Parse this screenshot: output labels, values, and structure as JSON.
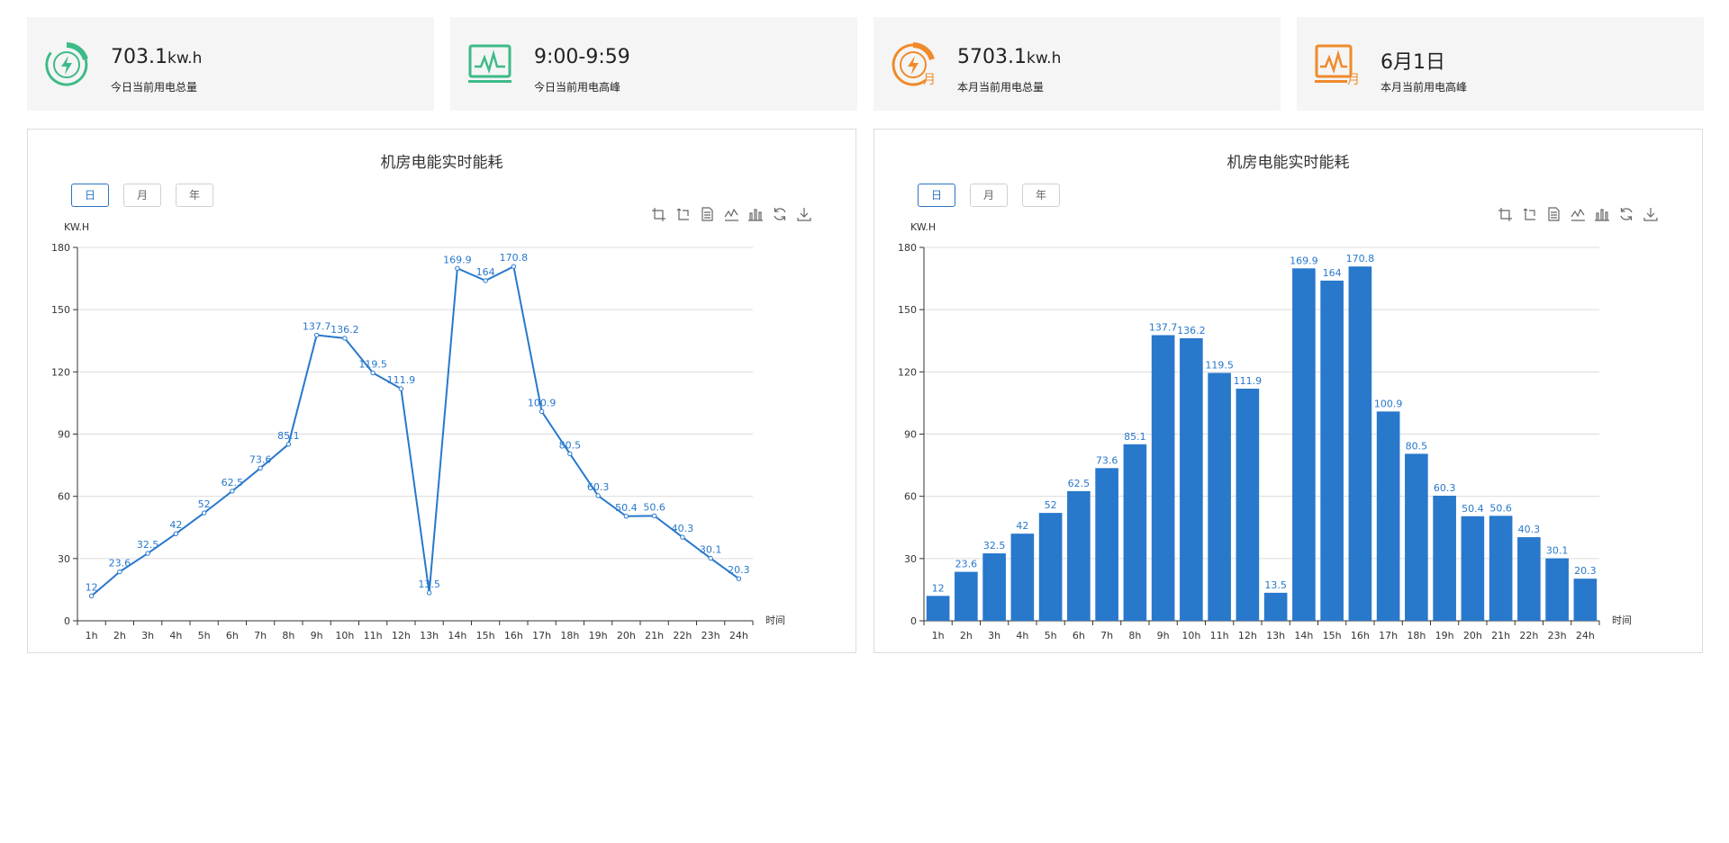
{
  "stats": [
    {
      "value": "703.1",
      "unit": "kw.h",
      "label": "今日当前用电总量",
      "icon": "today-energy-icon",
      "color": "#3dbb86"
    },
    {
      "value": "9:00-9:59",
      "unit": "",
      "label": "今日当前用电高峰",
      "icon": "today-peak-monitor-icon",
      "color": "#3dbb86"
    },
    {
      "value": "5703.1",
      "unit": "kw.h",
      "label": "本月当前用电总量",
      "icon": "month-energy-icon",
      "color": "#f08a2b"
    },
    {
      "value": "6月1日",
      "unit": "",
      "label": "本月当前用电高峰",
      "icon": "month-peak-monitor-icon",
      "color": "#f08a2b"
    }
  ],
  "icon_badge_text": "月",
  "tabs": [
    "日",
    "月",
    "年"
  ],
  "toolbox_icons": [
    "zoom-icon",
    "zoom-reset-icon",
    "data-view-icon",
    "line-switch-icon",
    "bar-switch-icon",
    "restore-icon",
    "download-icon"
  ],
  "accent_color": "#2878cc",
  "chart_data": [
    {
      "type": "line",
      "title": "机房电能实时能耗",
      "xlabel": "时间",
      "ylabel": "KW.H",
      "categories": [
        "1h",
        "2h",
        "3h",
        "4h",
        "5h",
        "6h",
        "7h",
        "8h",
        "9h",
        "10h",
        "11h",
        "12h",
        "13h",
        "14h",
        "15h",
        "16h",
        "17h",
        "18h",
        "19h",
        "20h",
        "21h",
        "22h",
        "23h",
        "24h"
      ],
      "values": [
        12,
        23.6,
        32.5,
        42,
        52,
        62.5,
        73.6,
        85.1,
        137.7,
        136.2,
        119.5,
        111.9,
        13.5,
        169.9,
        164,
        170.8,
        100.9,
        80.5,
        60.3,
        50.4,
        50.6,
        40.3,
        30.1,
        20.3
      ],
      "ylim": [
        0,
        180
      ],
      "yticks": [
        0,
        30,
        60,
        90,
        120,
        150,
        180
      ],
      "grid": true,
      "color": "#2878cc"
    },
    {
      "type": "bar",
      "title": "机房电能实时能耗",
      "xlabel": "时间",
      "ylabel": "KW.H",
      "categories": [
        "1h",
        "2h",
        "3h",
        "4h",
        "5h",
        "6h",
        "7h",
        "8h",
        "9h",
        "10h",
        "11h",
        "12h",
        "13h",
        "14h",
        "15h",
        "16h",
        "17h",
        "18h",
        "19h",
        "20h",
        "21h",
        "22h",
        "23h",
        "24h"
      ],
      "values": [
        12,
        23.6,
        32.5,
        42,
        52,
        62.5,
        73.6,
        85.1,
        137.7,
        136.2,
        119.5,
        111.9,
        13.5,
        169.9,
        164,
        170.8,
        100.9,
        80.5,
        60.3,
        50.4,
        50.6,
        40.3,
        30.1,
        20.3
      ],
      "ylim": [
        0,
        180
      ],
      "yticks": [
        0,
        30,
        60,
        90,
        120,
        150,
        180
      ],
      "grid": true,
      "color": "#2878cc"
    }
  ]
}
